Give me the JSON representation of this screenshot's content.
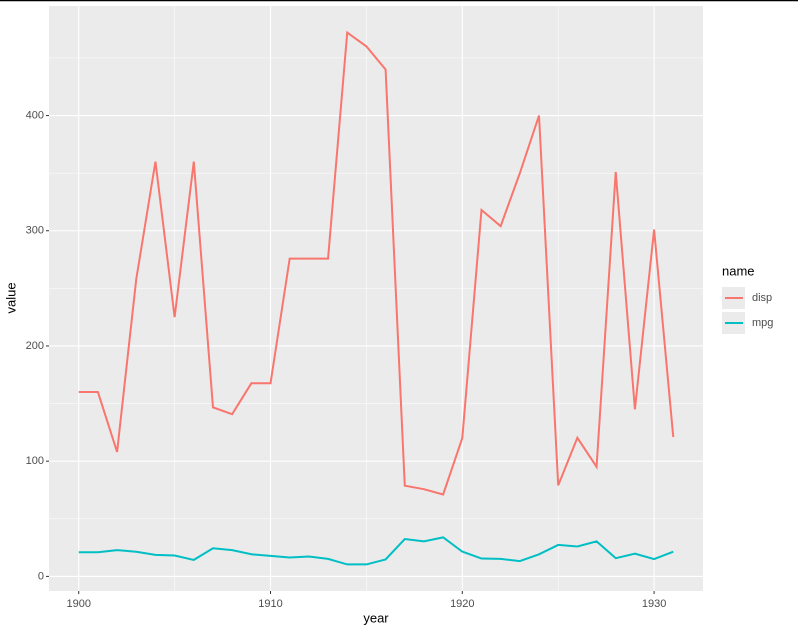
{
  "chart_data": {
    "type": "line",
    "x_label": "year",
    "y_label": "value",
    "legend_title": "name",
    "x": [
      1900,
      1901,
      1902,
      1903,
      1904,
      1905,
      1906,
      1907,
      1908,
      1909,
      1910,
      1911,
      1912,
      1913,
      1914,
      1915,
      1916,
      1917,
      1918,
      1919,
      1920,
      1921,
      1922,
      1923,
      1924,
      1925,
      1926,
      1927,
      1928,
      1929,
      1930,
      1931
    ],
    "series": [
      {
        "name": "disp",
        "color": "#F8766D",
        "values": [
          160,
          160,
          108,
          258,
          360,
          225,
          360,
          146.7,
          140.8,
          167.6,
          167.6,
          275.8,
          275.8,
          275.8,
          472,
          460,
          440,
          78.7,
          75.7,
          71.1,
          120.1,
          318,
          304,
          350,
          400,
          79,
          120.3,
          95.1,
          351,
          145,
          301,
          121
        ]
      },
      {
        "name": "mpg",
        "color": "#00BFC4",
        "values": [
          21,
          21,
          22.8,
          21.4,
          18.7,
          18.1,
          14.3,
          24.4,
          22.8,
          19.2,
          17.8,
          16.4,
          17.3,
          15.2,
          10.4,
          10.4,
          14.7,
          32.4,
          30.4,
          33.9,
          21.5,
          15.5,
          15.2,
          13.3,
          19.2,
          27.3,
          26,
          30.4,
          15.8,
          19.7,
          15,
          21.4
        ]
      }
    ],
    "xlim": [
      1898.45,
      1932.55
    ],
    "xticks": [
      1900,
      1910,
      1920,
      1930
    ],
    "xminor_ticks": [
      1905,
      1915,
      1925
    ],
    "ylim": [
      -12.68,
      495.08
    ],
    "yticks": [
      0,
      100,
      200,
      300,
      400
    ],
    "yminor_ticks": [
      50,
      150,
      250,
      350,
      450
    ],
    "grid": true,
    "legend_position": "right"
  }
}
